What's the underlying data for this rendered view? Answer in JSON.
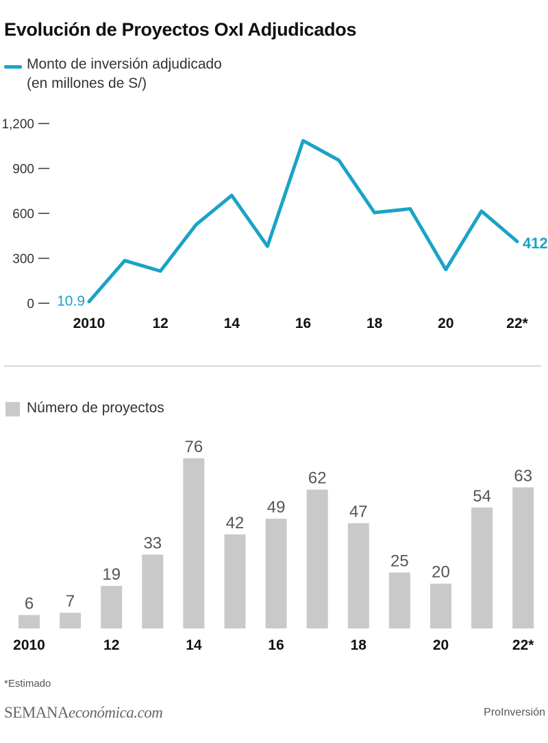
{
  "title": "Evolución de Proyectos OxI Adjudicados",
  "footnote": "*Estimado",
  "brand": {
    "part1": "SEMANA",
    "part2": "económica.com"
  },
  "source": "ProInversión",
  "colors": {
    "line": "#1aa3c6",
    "bar": "#c9c9c9"
  },
  "chart_data": [
    {
      "type": "line",
      "legend": "Monto de inversión adjudicado",
      "unit": "(en millones de S/)",
      "x": [
        2010,
        2011,
        2012,
        2013,
        2014,
        2015,
        2016,
        2017,
        2018,
        2019,
        2020,
        2021,
        2022
      ],
      "x_tick_values": [
        2010,
        2012,
        2014,
        2016,
        2018,
        2020,
        2022
      ],
      "x_tick_labels": [
        "2010",
        "12",
        "14",
        "16",
        "18",
        "20",
        "22*"
      ],
      "y_ticks": [
        0,
        300,
        600,
        900,
        1200
      ],
      "y_tick_labels": [
        "0",
        "300",
        "600",
        "900",
        "1,200"
      ],
      "ylim": [
        0,
        1200
      ],
      "series": [
        {
          "name": "Monto de inversión adjudicado",
          "values": [
            10.9,
            285,
            215,
            525,
            720,
            380,
            1085,
            955,
            605,
            630,
            225,
            615,
            412.2
          ]
        }
      ],
      "annotations": [
        {
          "x": 2010,
          "label": "10.9"
        },
        {
          "x": 2022,
          "label": "412.2"
        }
      ]
    },
    {
      "type": "bar",
      "legend": "Número de proyectos",
      "categories": [
        "2010",
        "2011",
        "2012",
        "2013",
        "2014",
        "2015",
        "2016",
        "2017",
        "2018",
        "2019",
        "2020",
        "2021",
        "2022"
      ],
      "x_tick_labels": [
        "2010",
        "",
        "12",
        "",
        "14",
        "",
        "16",
        "",
        "18",
        "",
        "20",
        "",
        "22*"
      ],
      "values": [
        6,
        7,
        19,
        33,
        76,
        42,
        49,
        62,
        47,
        25,
        20,
        54,
        63
      ],
      "ylim": [
        0,
        76
      ]
    }
  ]
}
